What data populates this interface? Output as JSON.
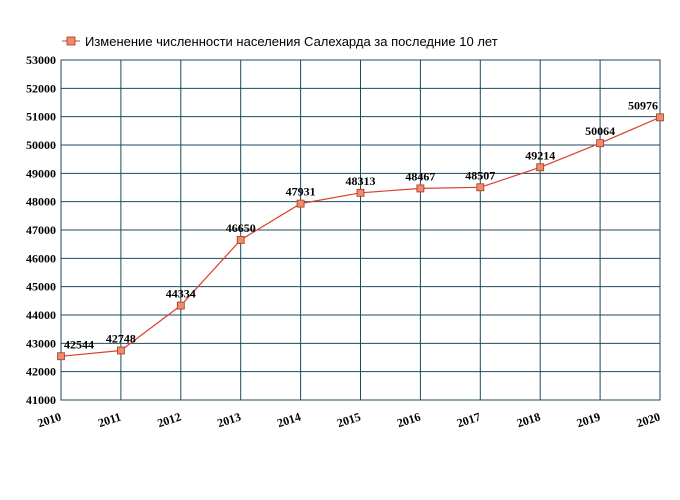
{
  "chart_data": {
    "type": "line",
    "title": "Изменение численности населения Салехарда за последние 10 лет",
    "x": [
      "2010",
      "2011",
      "2012",
      "2013",
      "2014",
      "2015",
      "2016",
      "2017",
      "2018",
      "2019",
      "2020"
    ],
    "series": [
      {
        "name": "Изменение численности населения Салехарда за последние 10 лет",
        "values": [
          42544,
          42748,
          44334,
          46650,
          47931,
          48313,
          48467,
          48507,
          49214,
          50064,
          50976
        ],
        "color": "#d9412e",
        "marker_fill": "#f08a6a"
      }
    ],
    "yticks": [
      "41000",
      "42000",
      "43000",
      "44000",
      "45000",
      "46000",
      "47000",
      "48000",
      "49000",
      "50000",
      "51000",
      "52000",
      "53000"
    ],
    "ylim": [
      41000,
      53000
    ],
    "grid": true,
    "grid_color": "#1e4a5e",
    "legend_position": "top-left",
    "xlabel": "",
    "ylabel": ""
  }
}
